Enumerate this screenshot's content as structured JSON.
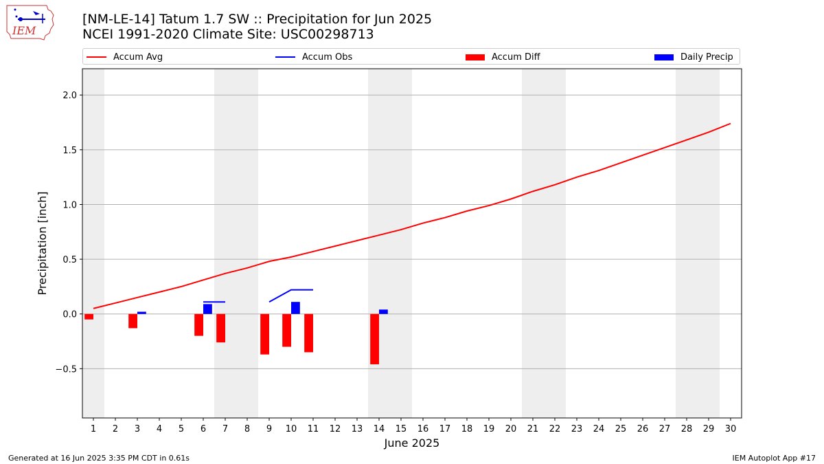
{
  "header": {
    "title_line1": "[NM-LE-14] Tatum 1.7 SW :: Precipitation for Jun 2025",
    "title_line2": "NCEI 1991-2020 Climate Site: USC00298713"
  },
  "logo": {
    "text": "IEM"
  },
  "legend": {
    "accum_avg": "Accum Avg",
    "accum_obs": "Accum Obs",
    "accum_diff": "Accum Diff",
    "daily_precip": "Daily Precip"
  },
  "colors": {
    "accum_avg": "#ff0000",
    "accum_obs": "#0000ff",
    "accum_diff": "#ff0000",
    "daily_precip": "#0000ff",
    "weekend_shade": "#eeeeee",
    "grid": "#b0b0b0"
  },
  "footer": {
    "generated": "Generated at 16 Jun 2025 3:35 PM CDT in 0.61s",
    "app": "IEM Autoplot App #17"
  },
  "chart_data": {
    "type": "bar",
    "title": "[NM-LE-14] Tatum 1.7 SW :: Precipitation for Jun 2025",
    "subtitle": "NCEI 1991-2020 Climate Site: USC00298713",
    "xlabel": "June 2025",
    "ylabel": "Precipitation [inch]",
    "xlim": [
      0.5,
      30.5
    ],
    "ylim": [
      -0.95,
      2.24
    ],
    "yticks": [
      -0.5,
      0.0,
      0.5,
      1.0,
      1.5,
      2.0
    ],
    "ytick_labels": [
      "−0.5",
      "0.0",
      "0.5",
      "1.0",
      "1.5",
      "2.0"
    ],
    "grid": "horizontal",
    "legend_position": "top",
    "days": [
      1,
      2,
      3,
      4,
      5,
      6,
      7,
      8,
      9,
      10,
      11,
      12,
      13,
      14,
      15,
      16,
      17,
      18,
      19,
      20,
      21,
      22,
      23,
      24,
      25,
      26,
      27,
      28,
      29,
      30
    ],
    "weekend_shaded_days": [
      [
        1,
        1
      ],
      [
        7,
        8
      ],
      [
        14,
        15
      ],
      [
        21,
        22
      ],
      [
        28,
        29
      ]
    ],
    "series": [
      {
        "name": "Accum Avg",
        "type": "line",
        "x": [
          1,
          2,
          3,
          4,
          5,
          6,
          7,
          8,
          9,
          10,
          11,
          12,
          13,
          14,
          15,
          16,
          17,
          18,
          19,
          20,
          21,
          22,
          23,
          24,
          25,
          26,
          27,
          28,
          29,
          30
        ],
        "values": [
          0.05,
          0.1,
          0.15,
          0.2,
          0.25,
          0.31,
          0.37,
          0.42,
          0.48,
          0.52,
          0.57,
          0.62,
          0.67,
          0.72,
          0.77,
          0.83,
          0.88,
          0.94,
          0.99,
          1.05,
          1.12,
          1.18,
          1.25,
          1.31,
          1.38,
          1.45,
          1.52,
          1.59,
          1.66,
          1.74
        ]
      },
      {
        "name": "Accum Obs",
        "type": "line",
        "segments": [
          {
            "x": [
              6,
              7
            ],
            "values": [
              0.11,
              0.11
            ]
          },
          {
            "x": [
              9,
              10,
              11
            ],
            "values": [
              0.11,
              0.22,
              0.22
            ]
          }
        ]
      },
      {
        "name": "Accum Diff",
        "type": "bar",
        "x": [
          1,
          3,
          6,
          7,
          9,
          10,
          11,
          14
        ],
        "values": [
          -0.05,
          -0.13,
          -0.2,
          -0.26,
          -0.37,
          -0.3,
          -0.35,
          -0.46
        ]
      },
      {
        "name": "Daily Precip",
        "type": "bar",
        "x": [
          3,
          6,
          10,
          14
        ],
        "values": [
          0.02,
          0.09,
          0.11,
          0.04
        ]
      }
    ]
  }
}
